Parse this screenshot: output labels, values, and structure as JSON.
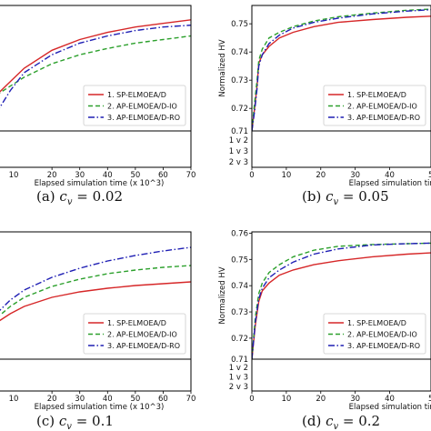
{
  "panels": [
    {
      "caption": "(a) c_v = 0.02",
      "caption_prefix": "(a) ",
      "caption_var": "c",
      "caption_sub": "v",
      "caption_rhs": " = 0.02",
      "xlabel": "Elapsed simulation time (x 10^3)"
    },
    {
      "caption": "(b) c_v = 0.05",
      "caption_prefix": "(b) ",
      "caption_var": "c",
      "caption_sub": "v",
      "caption_rhs": " = 0.05",
      "xlabel": "Elapsed simulation time (x 10^3)"
    },
    {
      "caption": "(c) c_v = 0.1",
      "caption_prefix": "(c) ",
      "caption_var": "c",
      "caption_sub": "v",
      "caption_rhs": " = 0.1",
      "xlabel": "Elapsed simulation time (x 10^3)"
    },
    {
      "caption": "(d) c_v = 0.2",
      "caption_prefix": "(d) ",
      "caption_var": "c",
      "caption_sub": "v",
      "caption_rhs": " = 0.2",
      "xlabel": "Elapsed simulation time (x 10^3)"
    }
  ],
  "chart_data": [
    {
      "panel": "a",
      "type": "line",
      "xlabel": "Elapsed simulation time (x 10^3)",
      "xlim": [
        0,
        70
      ],
      "xticks": [
        20,
        30,
        40,
        50,
        60,
        70
      ],
      "xtick_labels": [
        "20",
        "30",
        "40",
        "50",
        "60",
        "70"
      ],
      "xtick_partial_label": "10",
      "legend": "lower-right",
      "series": [
        {
          "name": "1. SP-ELMOEA/D",
          "color": "#d62728",
          "dash": "solid",
          "x": [
            0,
            5,
            10,
            20,
            30,
            40,
            50,
            60,
            70
          ],
          "y": [
            0.9,
            0.915,
            0.93,
            0.95,
            0.962,
            0.97,
            0.976,
            0.98,
            0.984
          ]
        },
        {
          "name": "2. AP-ELMOEA/D-IO",
          "color": "#2ca02c",
          "dash": "dashed",
          "x": [
            0,
            5,
            10,
            20,
            30,
            40,
            50,
            60,
            70
          ],
          "y": [
            0.9,
            0.91,
            0.92,
            0.935,
            0.945,
            0.952,
            0.958,
            0.962,
            0.966
          ]
        },
        {
          "name": "3. AP-ELMOEA/D-RO",
          "color": "#1f1fb4",
          "dash": "dashdot",
          "x": [
            0,
            5,
            10,
            20,
            30,
            40,
            50,
            60,
            70
          ],
          "y": [
            0.88,
            0.905,
            0.925,
            0.945,
            0.958,
            0.966,
            0.972,
            0.976,
            0.978
          ]
        }
      ]
    },
    {
      "panel": "b",
      "type": "line",
      "ylabel": "Normalized HV",
      "xlabel": "Elapsed simulation time (x 10^3)",
      "xlim": [
        0,
        52
      ],
      "ylim": [
        0.712,
        0.7565
      ],
      "yticks": [
        0.72,
        0.73,
        0.74,
        0.75
      ],
      "ytick_labels": [
        "0.72",
        "0.73",
        "0.74",
        "0.75"
      ],
      "ytick_partial_label": "0.71",
      "xticks": [
        0,
        10,
        20,
        30,
        40
      ],
      "xtick_labels": [
        "0",
        "10",
        "20",
        "30",
        "40"
      ],
      "xtick_partial_label": "5",
      "rank_rows": [
        "1 v 2",
        "1 v 3",
        "2 v 3"
      ],
      "legend": "lower-right",
      "series": [
        {
          "name": "1. SP-ELMOEA/D",
          "color": "#d62728",
          "dash": "solid",
          "x": [
            0,
            0.8,
            1.5,
            2,
            3,
            5,
            8,
            12,
            18,
            25,
            35,
            45,
            52
          ],
          "y": [
            0.712,
            0.72,
            0.728,
            0.736,
            0.739,
            0.742,
            0.745,
            0.747,
            0.749,
            0.7505,
            0.7515,
            0.7523,
            0.7527
          ]
        },
        {
          "name": "2. AP-ELMOEA/D-IO",
          "color": "#2ca02c",
          "dash": "dashed",
          "x": [
            0,
            0.8,
            1.5,
            2,
            3,
            5,
            8,
            12,
            18,
            25,
            35,
            45,
            52
          ],
          "y": [
            0.712,
            0.722,
            0.73,
            0.737,
            0.741,
            0.745,
            0.747,
            0.749,
            0.751,
            0.7525,
            0.7538,
            0.7548,
            0.7552
          ]
        },
        {
          "name": "3. AP-ELMOEA/D-RO",
          "color": "#1f1fb4",
          "dash": "dashdot",
          "x": [
            0,
            0.8,
            1.5,
            2,
            3,
            5,
            8,
            12,
            18,
            25,
            35,
            45,
            52
          ],
          "y": [
            0.712,
            0.719,
            0.727,
            0.735,
            0.739,
            0.743,
            0.746,
            0.7485,
            0.7505,
            0.752,
            0.7535,
            0.7545,
            0.755
          ]
        }
      ]
    },
    {
      "panel": "c",
      "type": "line",
      "xlabel": "Elapsed simulation time (x 10^3)",
      "xlim": [
        0,
        70
      ],
      "xticks": [
        20,
        30,
        40,
        50,
        60,
        70
      ],
      "xtick_labels": [
        "20",
        "30",
        "40",
        "50",
        "60",
        "70"
      ],
      "xtick_partial_label": "10",
      "legend": "lower-right",
      "series": [
        {
          "name": "1. SP-ELMOEA/D",
          "color": "#d62728",
          "dash": "solid",
          "x": [
            0,
            5,
            10,
            20,
            30,
            40,
            50,
            60,
            70
          ],
          "y": [
            0.9,
            0.91,
            0.918,
            0.928,
            0.934,
            0.938,
            0.941,
            0.943,
            0.945
          ]
        },
        {
          "name": "2. AP-ELMOEA/D-IO",
          "color": "#2ca02c",
          "dash": "dashed",
          "x": [
            0,
            5,
            10,
            20,
            30,
            40,
            50,
            60,
            70
          ],
          "y": [
            0.905,
            0.918,
            0.928,
            0.94,
            0.948,
            0.954,
            0.958,
            0.961,
            0.963
          ]
        },
        {
          "name": "3. AP-ELMOEA/D-RO",
          "color": "#1f1fb4",
          "dash": "dashdot",
          "x": [
            0,
            5,
            10,
            20,
            30,
            40,
            50,
            60,
            70
          ],
          "y": [
            0.91,
            0.925,
            0.936,
            0.95,
            0.96,
            0.968,
            0.974,
            0.979,
            0.983
          ]
        }
      ]
    },
    {
      "panel": "d",
      "type": "line",
      "ylabel": "Normalized HV",
      "xlabel": "Elapsed simulation time (x 10^3)",
      "xlim": [
        0,
        52
      ],
      "ylim": [
        0.712,
        0.7605
      ],
      "yticks": [
        0.72,
        0.73,
        0.74,
        0.75,
        0.76
      ],
      "ytick_labels": [
        "0.72",
        "0.73",
        "0.74",
        "0.75",
        "0.76"
      ],
      "ytick_partial_label": "0.71",
      "xticks": [
        0,
        10,
        20,
        30,
        40
      ],
      "xtick_labels": [
        "0",
        "10",
        "20",
        "30",
        "40"
      ],
      "xtick_partial_label": "5",
      "rank_rows": [
        "1 v 2",
        "1 v 3",
        "2 v 3"
      ],
      "legend": "lower-right",
      "series": [
        {
          "name": "1. SP-ELMOEA/D",
          "color": "#d62728",
          "dash": "solid",
          "x": [
            0,
            1,
            2,
            3,
            5,
            8,
            12,
            18,
            25,
            35,
            45,
            52
          ],
          "y": [
            0.712,
            0.725,
            0.734,
            0.738,
            0.741,
            0.744,
            0.746,
            0.748,
            0.7495,
            0.751,
            0.752,
            0.7525
          ]
        },
        {
          "name": "2. AP-ELMOEA/D-IO",
          "color": "#2ca02c",
          "dash": "dashed",
          "x": [
            0,
            1,
            2,
            3,
            5,
            8,
            12,
            18,
            25,
            35,
            45,
            52
          ],
          "y": [
            0.712,
            0.728,
            0.737,
            0.741,
            0.745,
            0.748,
            0.751,
            0.7535,
            0.755,
            0.7557,
            0.756,
            0.7562
          ]
        },
        {
          "name": "3. AP-ELMOEA/D-RO",
          "color": "#1f1fb4",
          "dash": "dashdot",
          "x": [
            0,
            1,
            2,
            3,
            5,
            8,
            12,
            18,
            25,
            35,
            45,
            52
          ],
          "y": [
            0.712,
            0.726,
            0.735,
            0.739,
            0.743,
            0.746,
            0.749,
            0.752,
            0.754,
            0.7555,
            0.756,
            0.7562
          ]
        }
      ]
    }
  ]
}
